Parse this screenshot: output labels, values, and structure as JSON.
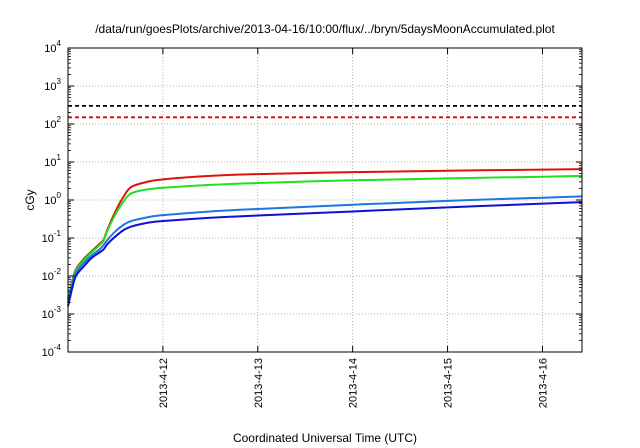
{
  "chart_data": {
    "type": "line",
    "title": "/data/run/goesPlots/archive/2013-04-16/10:00/flux/../bryn/5daysMoonAccumulated.plot",
    "xlabel": "Coordinated Universal Time (UTC)",
    "ylabel": "cGy",
    "yscale": "log",
    "ylim": [
      0.0001,
      10000
    ],
    "y_ticks": [
      {
        "base": "10",
        "exp": "-4",
        "value": 0.0001
      },
      {
        "base": "10",
        "exp": "-3",
        "value": 0.001
      },
      {
        "base": "10",
        "exp": "-2",
        "value": 0.01
      },
      {
        "base": "10",
        "exp": "-1",
        "value": 0.1
      },
      {
        "base": "10",
        "exp": "0",
        "value": 1
      },
      {
        "base": "10",
        "exp": "1",
        "value": 10
      },
      {
        "base": "10",
        "exp": "2",
        "value": 100
      },
      {
        "base": "10",
        "exp": "3",
        "value": 1000
      },
      {
        "base": "10",
        "exp": "4",
        "value": 10000
      }
    ],
    "xlim": [
      "2013-04-11 00:00",
      "2013-04-16 10:00"
    ],
    "x_ticks": [
      "2013-4-12",
      "2013-4-13",
      "2013-4-14",
      "2013-4-15",
      "2013-4-16"
    ],
    "grid": true,
    "threshold_lines": [
      {
        "value": 300,
        "color": "#000000",
        "style": "dashed"
      },
      {
        "value": 150,
        "color": "#e00000",
        "style": "dashed"
      }
    ],
    "series": [
      {
        "color": "#e01010",
        "points": [
          [
            "2013-04-11 00:00",
            0.0025
          ],
          [
            "2013-04-11 01:00",
            0.007
          ],
          [
            "2013-04-11 02:00",
            0.015
          ],
          [
            "2013-04-11 04:00",
            0.028
          ],
          [
            "2013-04-11 06:00",
            0.045
          ],
          [
            "2013-04-11 08:00",
            0.07
          ],
          [
            "2013-04-11 09:00",
            0.09
          ],
          [
            "2013-04-11 10:00",
            0.17
          ],
          [
            "2013-04-11 12:00",
            0.5
          ],
          [
            "2013-04-11 14:00",
            1.2
          ],
          [
            "2013-04-11 16:00",
            2.2
          ],
          [
            "2013-04-11 20:00",
            3.0
          ],
          [
            "2013-04-12 00:00",
            3.5
          ],
          [
            "2013-04-12 12:00",
            4.3
          ],
          [
            "2013-04-13 00:00",
            4.8
          ],
          [
            "2013-04-14 00:00",
            5.4
          ],
          [
            "2013-04-15 00:00",
            5.9
          ],
          [
            "2013-04-16 00:00",
            6.3
          ],
          [
            "2013-04-16 10:00",
            6.5
          ]
        ]
      },
      {
        "color": "#20e020",
        "points": [
          [
            "2013-04-11 00:00",
            0.0025
          ],
          [
            "2013-04-11 01:00",
            0.0065
          ],
          [
            "2013-04-11 02:00",
            0.014
          ],
          [
            "2013-04-11 04:00",
            0.026
          ],
          [
            "2013-04-11 06:00",
            0.042
          ],
          [
            "2013-04-11 08:00",
            0.065
          ],
          [
            "2013-04-11 09:00",
            0.085
          ],
          [
            "2013-04-11 10:00",
            0.16
          ],
          [
            "2013-04-11 12:00",
            0.42
          ],
          [
            "2013-04-11 14:00",
            0.9
          ],
          [
            "2013-04-11 16:00",
            1.5
          ],
          [
            "2013-04-11 20:00",
            1.9
          ],
          [
            "2013-04-12 00:00",
            2.1
          ],
          [
            "2013-04-12 12:00",
            2.5
          ],
          [
            "2013-04-13 00:00",
            2.8
          ],
          [
            "2013-04-14 00:00",
            3.3
          ],
          [
            "2013-04-15 00:00",
            3.7
          ],
          [
            "2013-04-16 00:00",
            4.1
          ],
          [
            "2013-04-16 10:00",
            4.3
          ]
        ]
      },
      {
        "color": "#1a78e0",
        "points": [
          [
            "2013-04-11 00:00",
            0.002
          ],
          [
            "2013-04-11 01:00",
            0.0055
          ],
          [
            "2013-04-11 02:00",
            0.012
          ],
          [
            "2013-04-11 04:00",
            0.022
          ],
          [
            "2013-04-11 06:00",
            0.035
          ],
          [
            "2013-04-11 08:00",
            0.05
          ],
          [
            "2013-04-11 09:00",
            0.065
          ],
          [
            "2013-04-11 10:00",
            0.09
          ],
          [
            "2013-04-11 12:00",
            0.15
          ],
          [
            "2013-04-11 14:00",
            0.22
          ],
          [
            "2013-04-11 16:00",
            0.28
          ],
          [
            "2013-04-11 20:00",
            0.35
          ],
          [
            "2013-04-12 00:00",
            0.4
          ],
          [
            "2013-04-12 12:00",
            0.5
          ],
          [
            "2013-04-13 00:00",
            0.58
          ],
          [
            "2013-04-14 00:00",
            0.75
          ],
          [
            "2013-04-15 00:00",
            0.95
          ],
          [
            "2013-04-16 00:00",
            1.15
          ],
          [
            "2013-04-16 10:00",
            1.25
          ]
        ]
      },
      {
        "color": "#1010d0",
        "points": [
          [
            "2013-04-11 00:00",
            0.0016
          ],
          [
            "2013-04-11 01:00",
            0.0045
          ],
          [
            "2013-04-11 02:00",
            0.01
          ],
          [
            "2013-04-11 04:00",
            0.018
          ],
          [
            "2013-04-11 06:00",
            0.03
          ],
          [
            "2013-04-11 08:00",
            0.042
          ],
          [
            "2013-04-11 09:00",
            0.05
          ],
          [
            "2013-04-11 10:00",
            0.07
          ],
          [
            "2013-04-11 12:00",
            0.11
          ],
          [
            "2013-04-11 14:00",
            0.16
          ],
          [
            "2013-04-11 16:00",
            0.2
          ],
          [
            "2013-04-11 20:00",
            0.25
          ],
          [
            "2013-04-12 00:00",
            0.28
          ],
          [
            "2013-04-12 12:00",
            0.34
          ],
          [
            "2013-04-13 00:00",
            0.39
          ],
          [
            "2013-04-14 00:00",
            0.5
          ],
          [
            "2013-04-15 00:00",
            0.64
          ],
          [
            "2013-04-16 00:00",
            0.8
          ],
          [
            "2013-04-16 10:00",
            0.88
          ]
        ]
      }
    ]
  }
}
